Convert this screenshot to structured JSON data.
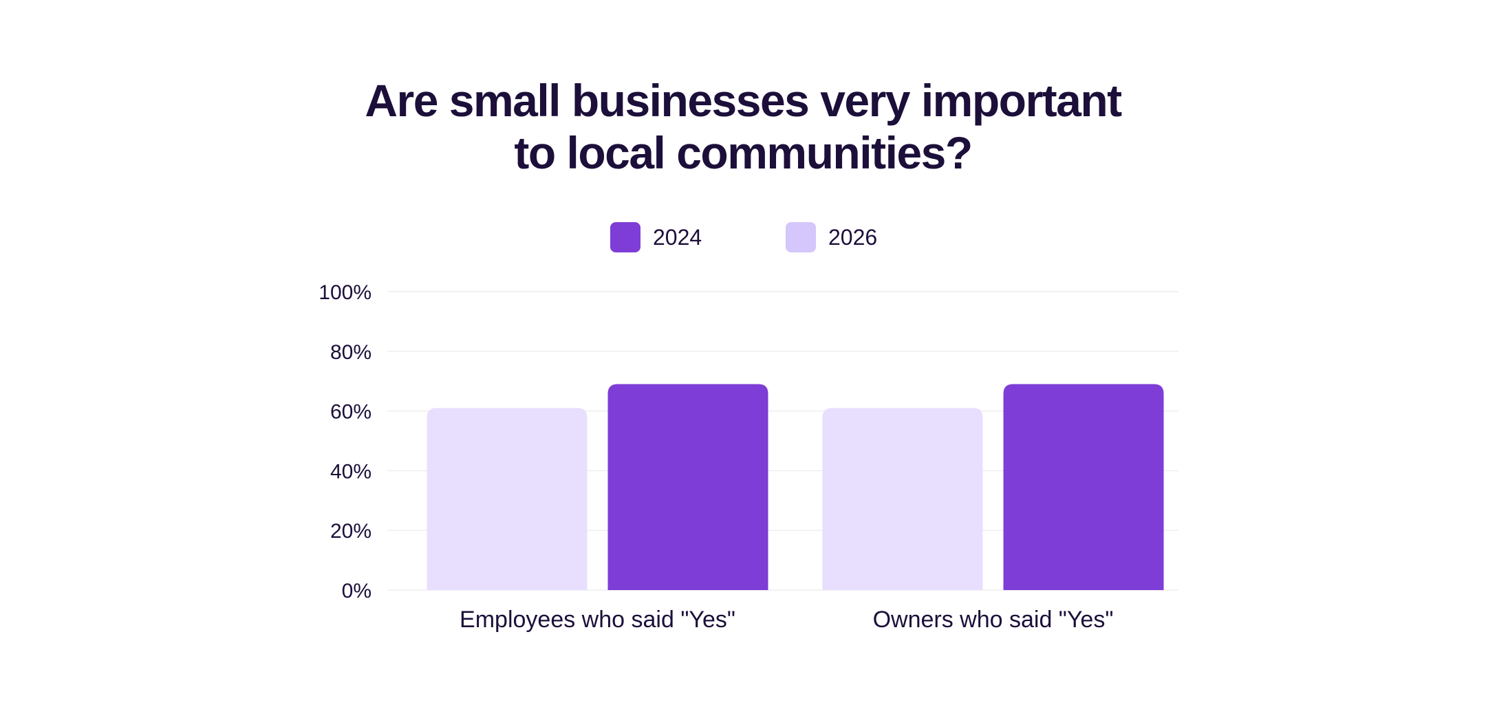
{
  "chart_data": {
    "type": "bar",
    "title_lines": [
      "Are small businesses very important",
      "to local communities?"
    ],
    "categories": [
      "Employees who said \"Yes\"",
      "Owners who said \"Yes\""
    ],
    "series": [
      {
        "name": "2026",
        "values": [
          61,
          61
        ],
        "color": "#e8dfff"
      },
      {
        "name": "2024",
        "values": [
          69,
          69
        ],
        "color": "#7e3dd6"
      }
    ],
    "legend": [
      {
        "name": "2024",
        "color": "#7e3dd6"
      },
      {
        "name": "2026",
        "color": "#d5c6fb"
      }
    ],
    "legend_placement": "top-center",
    "ylim": [
      0,
      100
    ],
    "yticks": [
      0,
      20,
      40,
      60,
      80,
      100
    ],
    "ytick_labels": [
      "0%",
      "20%",
      "40%",
      "60%",
      "80%",
      "100%"
    ],
    "grid": true,
    "grid_color": "#eeeeee",
    "text_color": "#1c0f3a"
  }
}
